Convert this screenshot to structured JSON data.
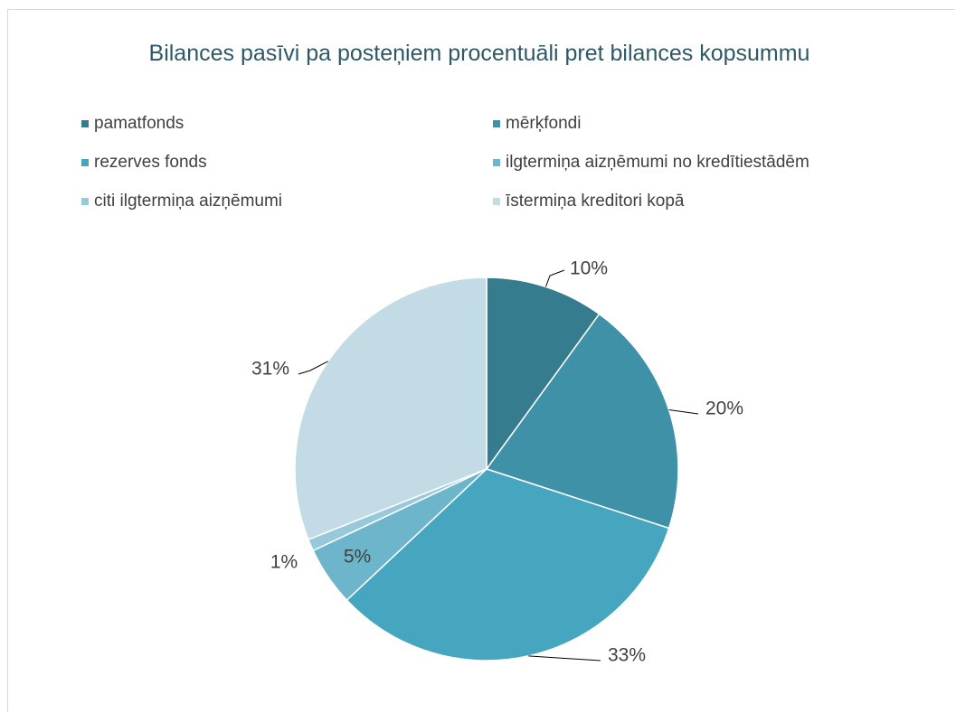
{
  "chart_data": {
    "type": "pie",
    "title": "Bilances pasīvi pa posteņiem procentuāli pret bilances kopsummu",
    "categories": [
      "pamatfonds",
      "mērķfondi",
      "rezerves fonds",
      "ilgtermiņa aizņēmumi no kredītiestādēm",
      "citi ilgtermiņa aizņēmumi",
      "īstermiņa kreditori kopā"
    ],
    "values": [
      10,
      20,
      33,
      5,
      1,
      31
    ],
    "value_labels": [
      "10%",
      "20%",
      "33%",
      "5%",
      "1%",
      "31%"
    ],
    "colors": [
      "#367c8f",
      "#3f91a8",
      "#47a6bf",
      "#6db5cb",
      "#98c9da",
      "#c2dbe5"
    ],
    "legend": "top"
  }
}
